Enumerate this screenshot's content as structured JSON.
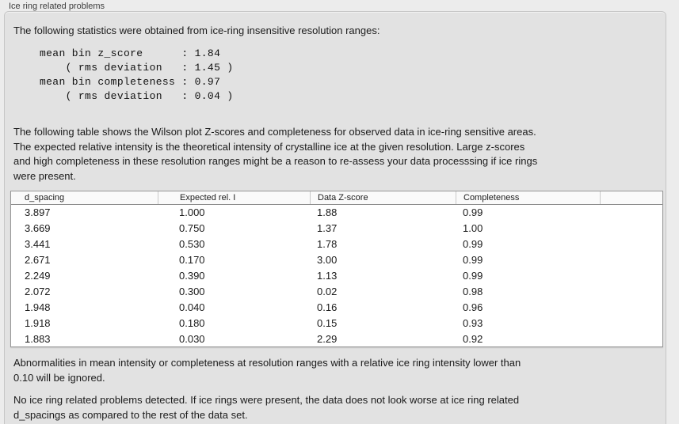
{
  "panel": {
    "title": "Ice ring related problems"
  },
  "stats": {
    "intro": "The following statistics were obtained from ice-ring insensitive resolution ranges:",
    "block": "mean bin z_score      : 1.84\n    ( rms deviation   : 1.45 )\nmean bin completeness : 0.97\n    ( rms deviation   : 0.04 )"
  },
  "description": "The following table shows the Wilson plot Z-scores and completeness for observed data in ice-ring sensitive areas.\nThe expected relative intensity is the theoretical intensity of crystalline ice at the given resolution. Large z-scores\nand high completeness in these resolution ranges might be a reason to re-assess your data processsing if ice rings\nwere present.",
  "table": {
    "columns": [
      "d_spacing",
      "Expected rel. I",
      "Data Z-score",
      "Completeness"
    ],
    "rows": [
      [
        "3.897",
        "1.000",
        "1.88",
        "0.99"
      ],
      [
        "3.669",
        "0.750",
        "1.37",
        "1.00"
      ],
      [
        "3.441",
        "0.530",
        "1.78",
        "0.99"
      ],
      [
        "2.671",
        "0.170",
        "3.00",
        "0.99"
      ],
      [
        "2.249",
        "0.390",
        "1.13",
        "0.99"
      ],
      [
        "2.072",
        "0.300",
        "0.02",
        "0.98"
      ],
      [
        "1.948",
        "0.040",
        "0.16",
        "0.96"
      ],
      [
        "1.918",
        "0.180",
        "0.15",
        "0.93"
      ],
      [
        "1.883",
        "0.030",
        "2.29",
        "0.92"
      ]
    ]
  },
  "notes": {
    "ignore_rule": "Abnormalities in mean intensity or completeness at resolution ranges with a relative ice ring intensity lower than\n0.10 will be ignored.",
    "conclusion": "No ice ring related problems detected. If ice rings were present, the data does not look worse at ice ring related\nd_spacings as compared to the rest of the data set."
  }
}
